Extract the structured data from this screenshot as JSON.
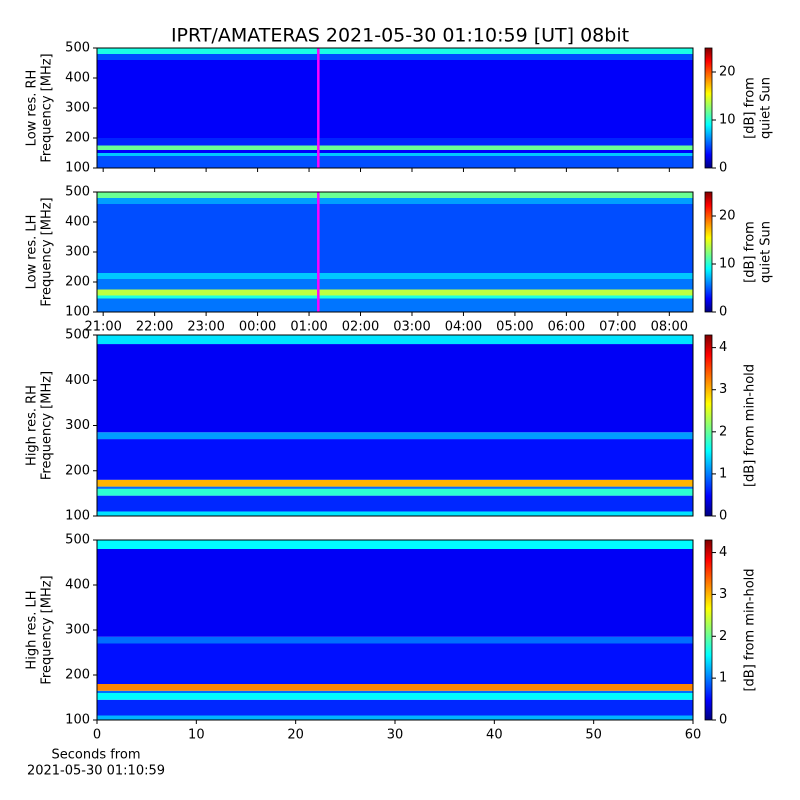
{
  "chart_data": [
    {
      "type": "heatmap",
      "title": "IPRT/AMATERAS 2021-05-30 01:10:59 [UT]   08bit",
      "ylabel": [
        "Low res. RH",
        "Frequency [MHz]"
      ],
      "ylim": [
        100,
        500
      ],
      "yticks": [
        100,
        200,
        300,
        400,
        500
      ],
      "xlim": [
        20.88,
        32.46
      ],
      "marker_x": 25.18,
      "marker_color": "#ff00ff",
      "freq_edges": [
        100,
        140,
        150,
        160,
        175,
        200,
        460,
        480,
        500
      ],
      "levels": [
        5,
        8,
        3,
        12,
        4,
        3,
        5,
        10
      ],
      "clim": [
        0,
        25
      ],
      "cticks": [
        0,
        10,
        20
      ],
      "clabel": [
        "[dB] from",
        "quiet Sun"
      ]
    },
    {
      "type": "heatmap",
      "ylabel": [
        "Low res. LH",
        "Frequency [MHz]"
      ],
      "ylim": [
        100,
        500
      ],
      "yticks": [
        100,
        200,
        300,
        400,
        500
      ],
      "xlim": [
        20.88,
        32.46
      ],
      "marker_x": 25.18,
      "marker_color": "#ff00ff",
      "xticks": [
        {
          "value": 21,
          "label": "21:00"
        },
        {
          "value": 22,
          "label": "22:00"
        },
        {
          "value": 23,
          "label": "23:00"
        },
        {
          "value": 24,
          "label": "00:00"
        },
        {
          "value": 25,
          "label": "01:00"
        },
        {
          "value": 26,
          "label": "02:00"
        },
        {
          "value": 27,
          "label": "03:00"
        },
        {
          "value": 28,
          "label": "04:00"
        },
        {
          "value": 29,
          "label": "05:00"
        },
        {
          "value": 30,
          "label": "06:00"
        },
        {
          "value": 31,
          "label": "07:00"
        },
        {
          "value": 32,
          "label": "08:00"
        }
      ],
      "freq_edges": [
        100,
        145,
        155,
        175,
        210,
        230,
        460,
        480,
        500
      ],
      "levels": [
        6,
        10,
        14,
        6,
        8,
        5,
        7,
        12
      ],
      "clim": [
        0,
        25
      ],
      "cticks": [
        0,
        10,
        20
      ],
      "clabel": [
        "[dB] from",
        "quiet Sun"
      ]
    },
    {
      "type": "heatmap",
      "ylabel": [
        "High res. RH",
        "Frequency [MHz]"
      ],
      "ylim": [
        100,
        500
      ],
      "yticks": [
        100,
        200,
        300,
        400,
        500
      ],
      "xlim": [
        0,
        60
      ],
      "freq_edges": [
        100,
        110,
        145,
        160,
        165,
        180,
        270,
        285,
        480,
        500
      ],
      "levels": [
        1.5,
        0.7,
        1.8,
        1,
        3,
        0.6,
        1.2,
        0.5,
        1.5
      ],
      "clim": [
        0,
        4.3
      ],
      "cticks": [
        0,
        1,
        2,
        3,
        4
      ],
      "clabel": [
        "[dB] from min-hold"
      ]
    },
    {
      "type": "heatmap",
      "ylabel": [
        "High res. LH",
        "Frequency [MHz]"
      ],
      "ylim": [
        100,
        500
      ],
      "yticks": [
        100,
        200,
        300,
        400,
        500
      ],
      "xlim": [
        0,
        60
      ],
      "xticks": [
        0,
        10,
        20,
        30,
        40,
        50,
        60
      ],
      "xlabel": [
        "Seconds from",
        "2021-05-30 01:10:59"
      ],
      "freq_edges": [
        100,
        110,
        145,
        160,
        165,
        180,
        270,
        285,
        480,
        500
      ],
      "levels": [
        1.3,
        0.7,
        1.6,
        1,
        3.2,
        0.6,
        1,
        0.5,
        1.6
      ],
      "clim": [
        0,
        4.3
      ],
      "cticks": [
        0,
        1,
        2,
        3,
        4
      ],
      "clabel": [
        "[dB] from min-hold"
      ]
    }
  ]
}
